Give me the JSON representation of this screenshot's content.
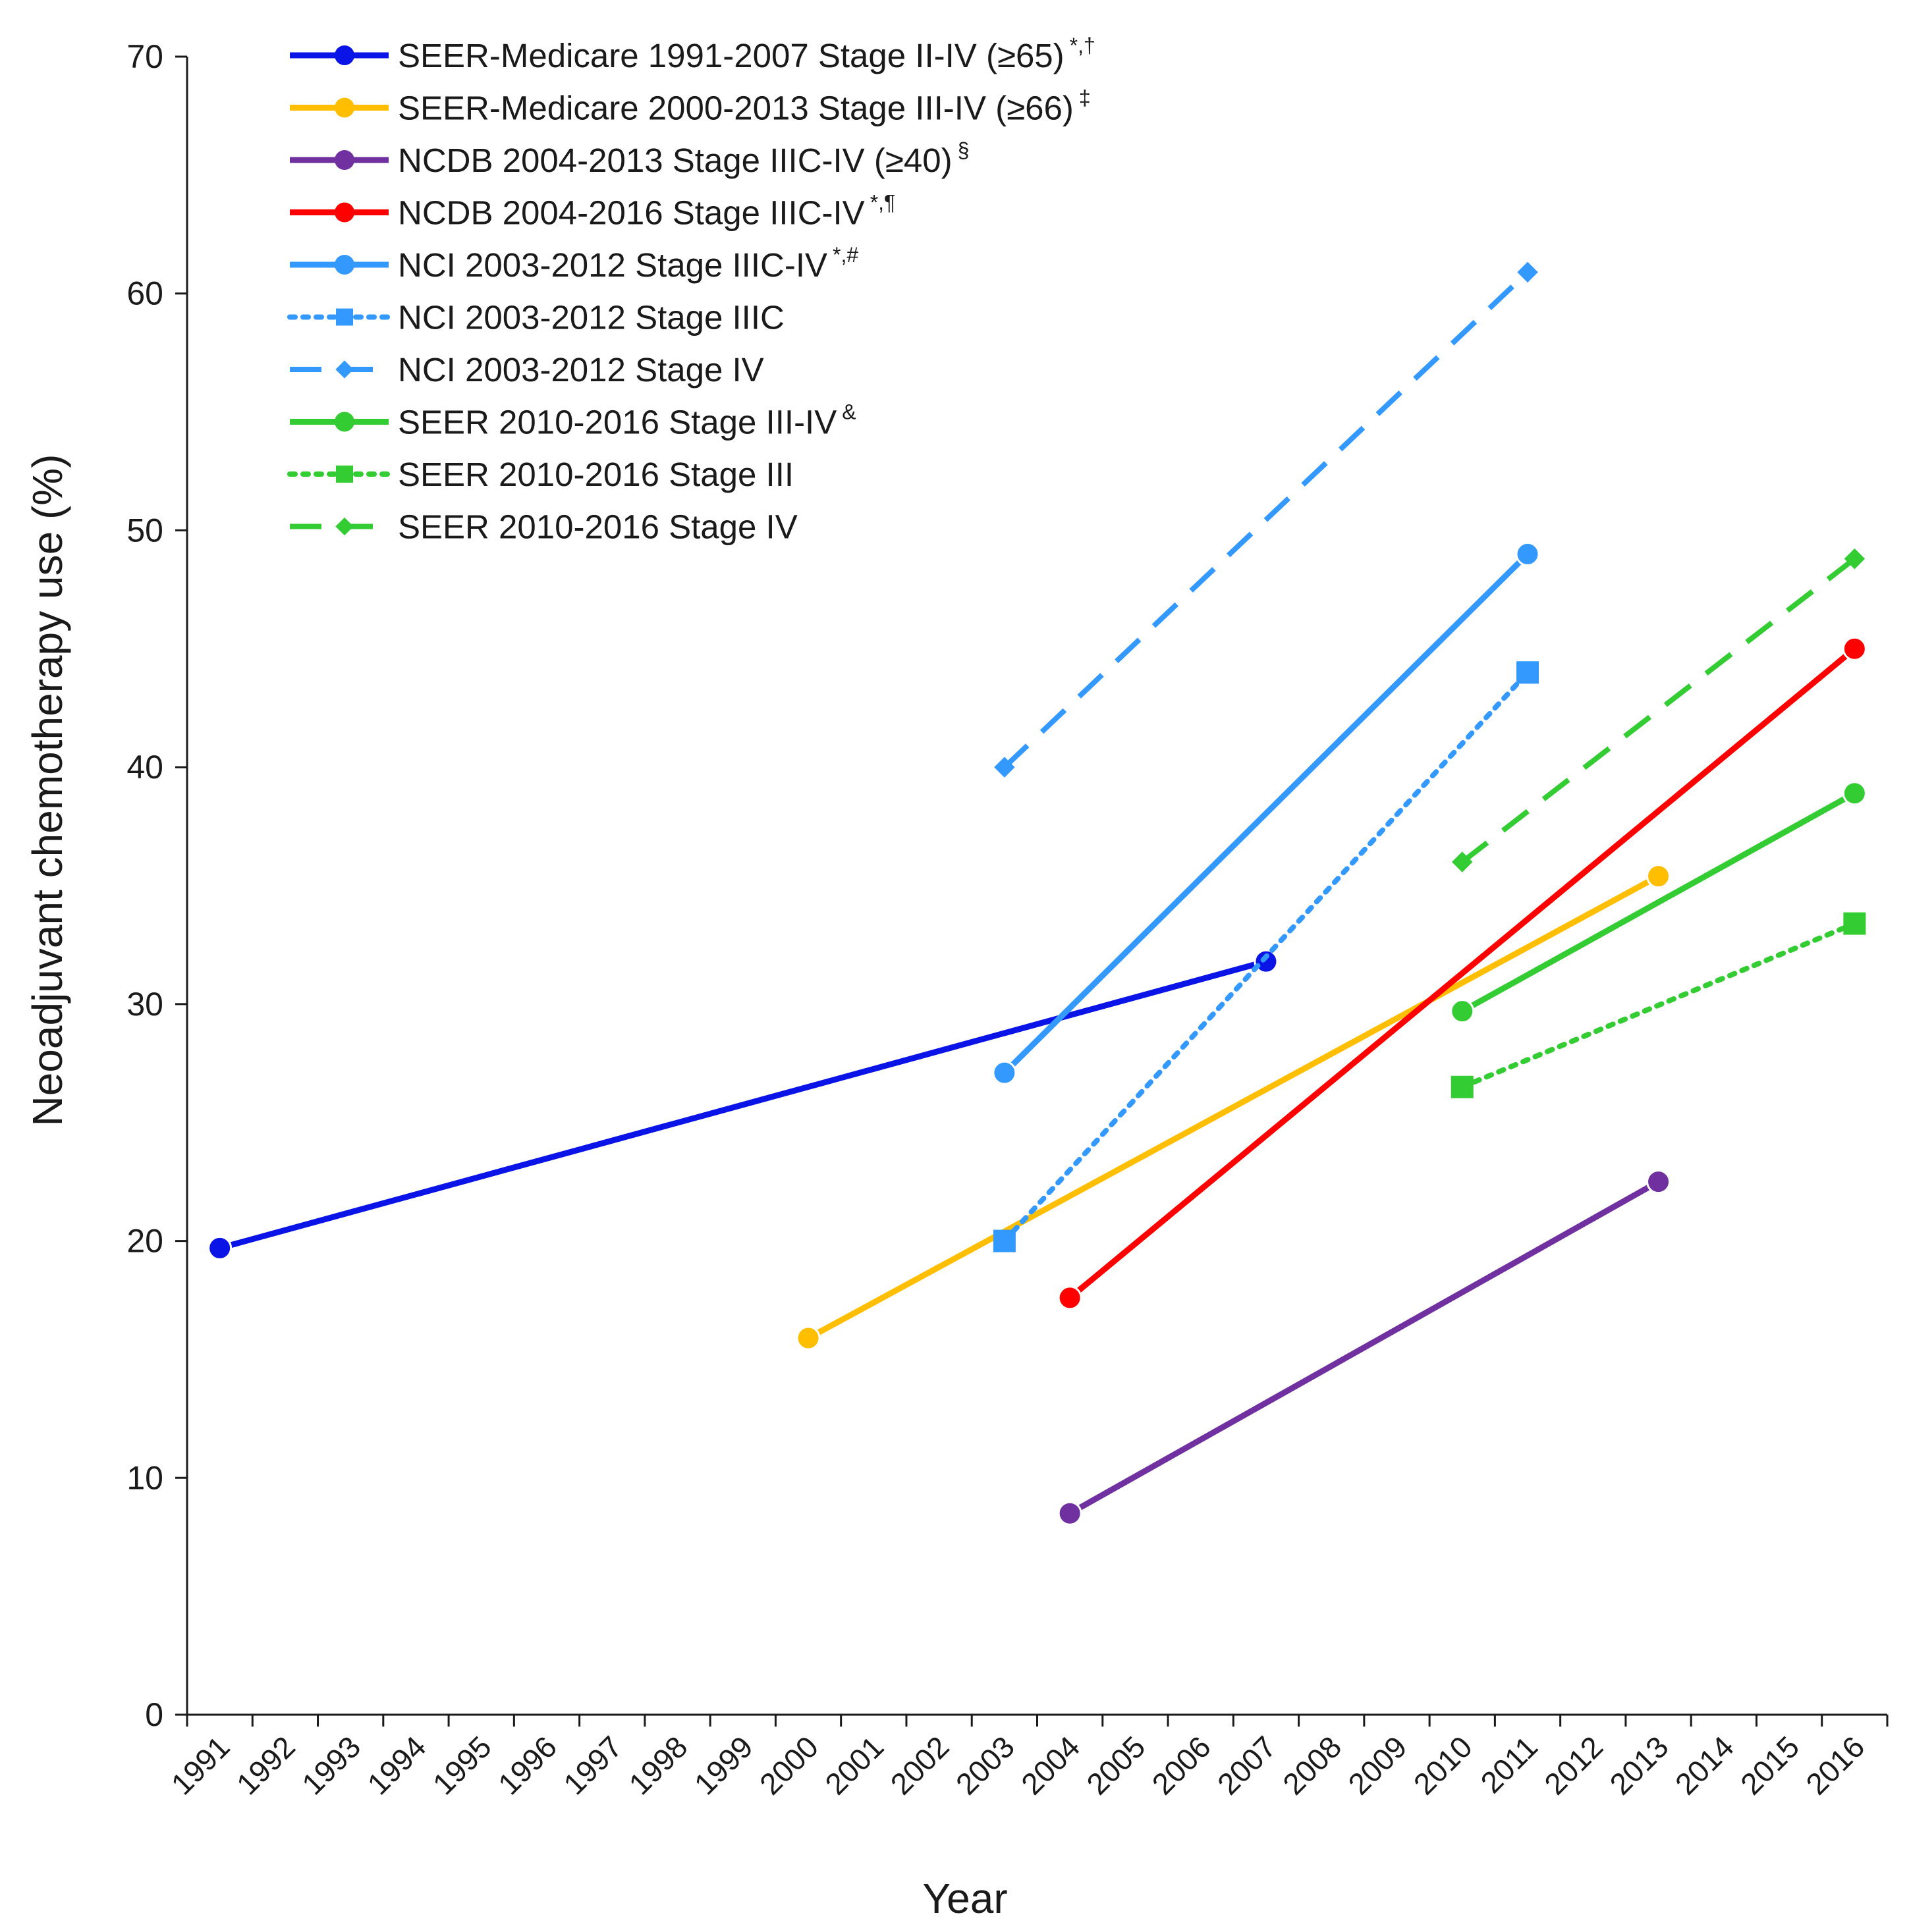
{
  "chart_data": {
    "type": "line",
    "title": "",
    "xlabel": "Year",
    "ylabel": "Neoadjuvant chemotherapy use (%)",
    "ylim": [
      0,
      70
    ],
    "yticks": [
      "0",
      "10",
      "20",
      "30",
      "40",
      "50",
      "60",
      "70"
    ],
    "categories": [
      "1991",
      "1992",
      "1993",
      "1994",
      "1995",
      "1996",
      "1997",
      "1998",
      "1999",
      "2000",
      "2001",
      "2002",
      "2003",
      "2004",
      "2005",
      "2006",
      "2007",
      "2008",
      "2009",
      "2010",
      "2011",
      "2012",
      "2013",
      "2014",
      "2015",
      "2016"
    ],
    "legend_position": "top-left",
    "series": [
      {
        "name": "SEER-Medicare 1991-2007 Stage II-IV (≥65)",
        "sup": "*,†",
        "color": "#0a14e6",
        "dash": "solid",
        "marker": "circle",
        "x": [
          1991,
          2007
        ],
        "values": [
          19.7,
          31.8
        ]
      },
      {
        "name": "SEER-Medicare 2000-2013 Stage III-IV  (≥66)",
        "sup": "‡",
        "color": "#ffbf00",
        "dash": "solid",
        "marker": "circle",
        "x": [
          2000,
          2013
        ],
        "values": [
          15.9,
          35.4
        ]
      },
      {
        "name": "NCDB 2004-2013 Stage IIIC-IV  (≥40)",
        "sup": "§",
        "color": "#7030a0",
        "dash": "solid",
        "marker": "circle",
        "x": [
          2004,
          2013
        ],
        "values": [
          8.5,
          22.5
        ]
      },
      {
        "name": "NCDB 2004-2016 Stage IIIC-IV",
        "sup": "*,¶",
        "color": "#ff0000",
        "dash": "solid",
        "marker": "circle",
        "x": [
          2004,
          2016
        ],
        "values": [
          17.6,
          45.0
        ]
      },
      {
        "name": "NCI 2003-2012 Stage IIIC-IV",
        "sup": "*,#",
        "color": "#3399ff",
        "dash": "solid",
        "marker": "circle",
        "x": [
          2003,
          2011
        ],
        "values": [
          27.1,
          49.0
        ]
      },
      {
        "name": "NCI 2003-2012 Stage IIIC",
        "sup": "",
        "color": "#3399ff",
        "dash": "dotted",
        "marker": "square",
        "x": [
          2003,
          2011
        ],
        "values": [
          20.0,
          44.0
        ]
      },
      {
        "name": "NCI 2003-2012 Stage IV",
        "sup": "",
        "color": "#3399ff",
        "dash": "dashed",
        "marker": "diamond",
        "x": [
          2003,
          2011
        ],
        "values": [
          40.0,
          60.9
        ]
      },
      {
        "name": "SEER 2010-2016 Stage III-IV",
        "sup": "&",
        "color": "#33cc33",
        "dash": "solid",
        "marker": "circle",
        "x": [
          2010,
          2016
        ],
        "values": [
          29.7,
          38.9
        ]
      },
      {
        "name": "SEER 2010-2016 Stage III",
        "sup": "",
        "color": "#33cc33",
        "dash": "dotted",
        "marker": "square",
        "x": [
          2010,
          2016
        ],
        "values": [
          26.5,
          33.4
        ]
      },
      {
        "name": "SEER 2010-2016  Stage IV",
        "sup": "",
        "color": "#33cc33",
        "dash": "dashed",
        "marker": "diamond",
        "x": [
          2010,
          2016
        ],
        "values": [
          36.0,
          48.8
        ]
      }
    ]
  }
}
